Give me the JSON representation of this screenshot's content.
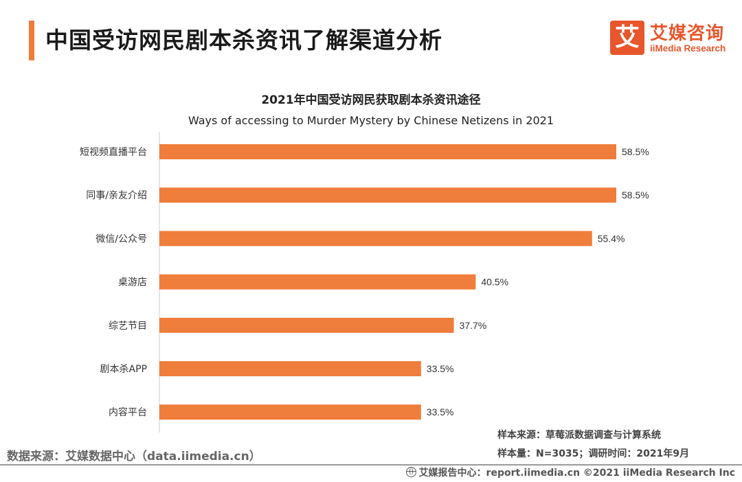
{
  "header": {
    "title": "中国受访网民剧本杀资讯了解渠道分析",
    "accent_color": "#ef7d3b"
  },
  "logo": {
    "mark": "艾",
    "name_cn": "艾媒咨询",
    "name_en": "iiMedia Research",
    "color": "#e8562c"
  },
  "chart_data": {
    "type": "bar",
    "orientation": "horizontal",
    "title": "2021年中国受访网民获取剧本杀资讯途径",
    "subtitle": "Ways of accessing to Murder Mystery by Chinese Netizens in 2021",
    "categories": [
      "短视频直播平台",
      "同事/亲友介绍",
      "微信/公众号",
      "桌游店",
      "综艺节目",
      "剧本杀APP",
      "内容平台"
    ],
    "values": [
      58.5,
      58.5,
      55.4,
      40.5,
      37.7,
      33.5,
      33.5
    ],
    "value_labels": [
      "58.5%",
      "58.5%",
      "55.4%",
      "40.5%",
      "37.7%",
      "33.5%",
      "33.5%"
    ],
    "unit": "%",
    "xlim": [
      0,
      58.5
    ],
    "bar_color": "#ef7d3b",
    "grid": false,
    "legend": "none"
  },
  "notes": {
    "sample_source": "样本来源：草莓派数据调查与计算系统",
    "sample_size": "样本量：N=3035；调研时间：2021年9月"
  },
  "source": "数据来源：艾媒数据中心（data.iimedia.cn）",
  "footer": {
    "text": "艾媒报告中心：report.iimedia.cn  ©2021  iiMedia Research  Inc"
  }
}
